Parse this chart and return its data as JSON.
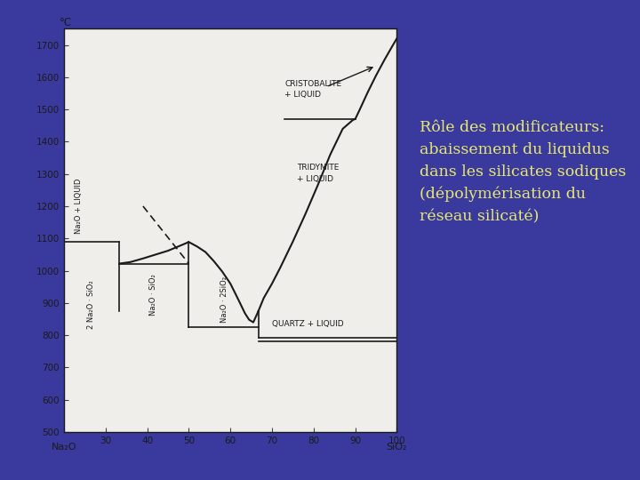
{
  "background_color": "#3a3a9e",
  "chart_bg": "#f0eeea",
  "xlim": [
    20,
    100
  ],
  "ylim": [
    500,
    1750
  ],
  "xticks": [
    30,
    40,
    50,
    60,
    70,
    80,
    90,
    100
  ],
  "yticks": [
    500,
    600,
    700,
    800,
    900,
    1000,
    1100,
    1200,
    1300,
    1400,
    1500,
    1600,
    1700
  ],
  "xlabel_left": "Na₂O",
  "xlabel_right": "SiO₂",
  "ylabel": "°C",
  "line_color": "#1a1a1a",
  "sidebar_text_color": "#e8e870",
  "sidebar_bg": "#3a3a9e",
  "label_2Na2OSiO2": "2 Na₂O · SiO₂",
  "label_Na2OSiO2": "Na₂O · SiO₂",
  "label_Na2O2SiO2": "Na₂O · 2SiO₂",
  "label_Na2O_LIQUID": "Na₂O + LIQUID",
  "label_CRISTOBALITE": "CRISTOBALITE\n+ LIQUID",
  "label_TRIDYMITE": "TRIDYMITE\n+ LIQUID",
  "label_QUARTZ": "QUARTZ + LIQUID"
}
